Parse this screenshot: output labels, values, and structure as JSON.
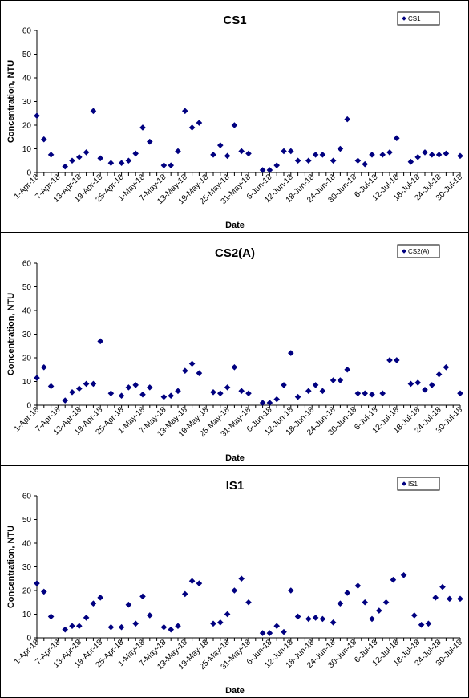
{
  "chart_data": [
    {
      "type": "scatter",
      "title": "CS1",
      "xlabel": "Date",
      "ylabel": "Concentration, NTU",
      "ylim": [
        0,
        60
      ],
      "yticks": [
        "0",
        "10",
        "20",
        "30",
        "40",
        "50",
        "60"
      ],
      "xlim": [
        "2018-04-01",
        "2018-07-30"
      ],
      "xticks": [
        "1-Apr-18",
        "7-Apr-18",
        "13-Apr-18",
        "19-Apr-18",
        "25-Apr-18",
        "1-May-18",
        "7-May-18",
        "13-May-18",
        "19-May-18",
        "25-May-18",
        "31-May-18",
        "6-Jun-18",
        "12-Jun-18",
        "18-Jun-18",
        "24-Jun-18",
        "30-Jun-18",
        "6-Jul-18",
        "12-Jul-18",
        "18-Jul-18",
        "24-Jul-18",
        "30-Jul-18"
      ],
      "grid": false,
      "legend_position": "top-right",
      "series": [
        {
          "name": "CS1",
          "color": "#000080",
          "x": [
            "2018-04-01",
            "2018-04-03",
            "2018-04-05",
            "2018-04-09",
            "2018-04-11",
            "2018-04-13",
            "2018-04-15",
            "2018-04-17",
            "2018-04-19",
            "2018-04-22",
            "2018-04-25",
            "2018-04-27",
            "2018-04-29",
            "2018-05-01",
            "2018-05-03",
            "2018-05-07",
            "2018-05-09",
            "2018-05-11",
            "2018-05-13",
            "2018-05-15",
            "2018-05-17",
            "2018-05-21",
            "2018-05-23",
            "2018-05-25",
            "2018-05-27",
            "2018-05-29",
            "2018-05-31",
            "2018-06-04",
            "2018-06-06",
            "2018-06-08",
            "2018-06-10",
            "2018-06-12",
            "2018-06-14",
            "2018-06-17",
            "2018-06-19",
            "2018-06-21",
            "2018-06-24",
            "2018-06-26",
            "2018-06-28",
            "2018-07-01",
            "2018-07-03",
            "2018-07-05",
            "2018-07-08",
            "2018-07-10",
            "2018-07-12",
            "2018-07-16",
            "2018-07-18",
            "2018-07-20",
            "2018-07-22",
            "2018-07-24",
            "2018-07-26",
            "2018-07-30"
          ],
          "y": [
            24,
            14,
            7.5,
            2.5,
            5,
            6.5,
            8.5,
            26,
            6,
            4,
            4,
            5,
            8,
            19,
            13,
            3,
            3,
            9,
            26,
            19,
            21,
            7.5,
            11.5,
            7,
            20,
            9,
            8,
            1,
            1,
            3,
            9,
            9,
            5,
            5,
            7.5,
            7.5,
            5,
            10,
            22.5,
            5,
            3.5,
            7.5,
            7.5,
            8.5,
            14.5,
            4.5,
            6.5,
            8.5,
            7.5,
            7.5,
            8,
            7
          ]
        }
      ]
    },
    {
      "type": "scatter",
      "title": "CS2(A)",
      "xlabel": "Date",
      "ylabel": "Concentration, NTU",
      "ylim": [
        0,
        60
      ],
      "yticks": [
        "0",
        "10",
        "20",
        "30",
        "40",
        "50",
        "60"
      ],
      "xlim": [
        "2018-04-01",
        "2018-07-30"
      ],
      "xticks": [
        "1-Apr-18",
        "7-Apr-18",
        "13-Apr-18",
        "19-Apr-18",
        "25-Apr-18",
        "1-May-18",
        "7-May-18",
        "13-May-18",
        "19-May-18",
        "25-May-18",
        "31-May-18",
        "6-Jun-18",
        "12-Jun-18",
        "18-Jun-18",
        "24-Jun-18",
        "30-Jun-18",
        "6-Jul-18",
        "12-Jul-18",
        "18-Jul-18",
        "24-Jul-18",
        "30-Jul-18"
      ],
      "grid": false,
      "legend_position": "top-right",
      "series": [
        {
          "name": "CS2(A)",
          "color": "#000080",
          "x": [
            "2018-04-01",
            "2018-04-03",
            "2018-04-05",
            "2018-04-09",
            "2018-04-11",
            "2018-04-13",
            "2018-04-15",
            "2018-04-17",
            "2018-04-19",
            "2018-04-22",
            "2018-04-25",
            "2018-04-27",
            "2018-04-29",
            "2018-05-01",
            "2018-05-03",
            "2018-05-07",
            "2018-05-09",
            "2018-05-11",
            "2018-05-13",
            "2018-05-15",
            "2018-05-17",
            "2018-05-21",
            "2018-05-23",
            "2018-05-25",
            "2018-05-27",
            "2018-05-29",
            "2018-05-31",
            "2018-06-04",
            "2018-06-06",
            "2018-06-08",
            "2018-06-10",
            "2018-06-12",
            "2018-06-14",
            "2018-06-17",
            "2018-06-19",
            "2018-06-21",
            "2018-06-24",
            "2018-06-26",
            "2018-06-28",
            "2018-07-01",
            "2018-07-03",
            "2018-07-05",
            "2018-07-08",
            "2018-07-10",
            "2018-07-12",
            "2018-07-16",
            "2018-07-18",
            "2018-07-20",
            "2018-07-22",
            "2018-07-24",
            "2018-07-26",
            "2018-07-30"
          ],
          "y": [
            11.5,
            16,
            8,
            2,
            5.5,
            7,
            9,
            9,
            27,
            5,
            4,
            7.5,
            8.5,
            4.5,
            7.5,
            3.5,
            4,
            6,
            14.5,
            17.5,
            13.5,
            5.5,
            5,
            7.5,
            16,
            6,
            5,
            1,
            1,
            2.5,
            8.5,
            22,
            3.5,
            6,
            8.5,
            6,
            10.5,
            10.5,
            15,
            5,
            5,
            4.5,
            5,
            19,
            19,
            9,
            9.5,
            6.5,
            8.5,
            13,
            16,
            5
          ]
        }
      ]
    },
    {
      "type": "scatter",
      "title": "IS1",
      "xlabel": "Date",
      "ylabel": "Concentration, NTU",
      "ylim": [
        0,
        60
      ],
      "yticks": [
        "0",
        "10",
        "20",
        "30",
        "40",
        "50",
        "60"
      ],
      "xlim": [
        "2018-04-01",
        "2018-07-30"
      ],
      "xticks": [
        "1-Apr-18",
        "7-Apr-18",
        "13-Apr-18",
        "19-Apr-18",
        "25-Apr-18",
        "1-May-18",
        "7-May-18",
        "13-May-18",
        "19-May-18",
        "25-May-18",
        "31-May-18",
        "6-Jun-18",
        "12-Jun-18",
        "18-Jun-18",
        "24-Jun-18",
        "30-Jun-18",
        "6-Jul-18",
        "12-Jul-18",
        "18-Jul-18",
        "24-Jul-18",
        "30-Jul-18"
      ],
      "grid": false,
      "legend_position": "top-right",
      "series": [
        {
          "name": "IS1",
          "color": "#000080",
          "x": [
            "2018-04-01",
            "2018-04-03",
            "2018-04-05",
            "2018-04-09",
            "2018-04-11",
            "2018-04-13",
            "2018-04-15",
            "2018-04-17",
            "2018-04-19",
            "2018-04-22",
            "2018-04-25",
            "2018-04-27",
            "2018-04-29",
            "2018-05-01",
            "2018-05-03",
            "2018-05-07",
            "2018-05-09",
            "2018-05-11",
            "2018-05-13",
            "2018-05-15",
            "2018-05-17",
            "2018-05-21",
            "2018-05-23",
            "2018-05-25",
            "2018-05-27",
            "2018-05-29",
            "2018-05-31",
            "2018-06-04",
            "2018-06-06",
            "2018-06-08",
            "2018-06-10",
            "2018-06-12",
            "2018-06-14",
            "2018-06-17",
            "2018-06-19",
            "2018-06-21",
            "2018-06-24",
            "2018-06-26",
            "2018-06-28",
            "2018-07-01",
            "2018-07-03",
            "2018-07-05",
            "2018-07-07",
            "2018-07-09",
            "2018-07-11",
            "2018-07-14",
            "2018-07-17",
            "2018-07-19",
            "2018-07-21",
            "2018-07-23",
            "2018-07-25",
            "2018-07-27",
            "2018-07-30"
          ],
          "y": [
            23,
            19.5,
            9,
            3.5,
            5,
            5,
            8.5,
            14.5,
            17,
            4.5,
            4.5,
            14,
            6,
            17.5,
            9.5,
            4.5,
            3.5,
            5,
            18.5,
            24,
            23,
            6,
            6.5,
            10,
            20,
            25,
            15,
            2,
            2,
            5,
            2.5,
            20,
            9,
            8,
            8.5,
            8,
            6.5,
            14.5,
            19,
            22,
            15,
            8,
            11.5,
            15,
            24.5,
            26.5,
            9.5,
            5.5,
            6,
            17,
            21.5,
            16.5,
            16.5
          ]
        }
      ]
    }
  ]
}
